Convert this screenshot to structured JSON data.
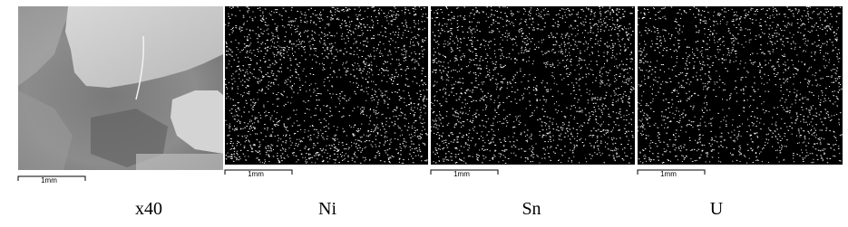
{
  "panels": [
    {
      "caption": "x40",
      "scale_label": "1mm"
    },
    {
      "caption": "Ni",
      "scale_label": "1mm"
    },
    {
      "caption": "Sn",
      "scale_label": "1mm"
    },
    {
      "caption": "U",
      "scale_label": "1mm"
    }
  ]
}
